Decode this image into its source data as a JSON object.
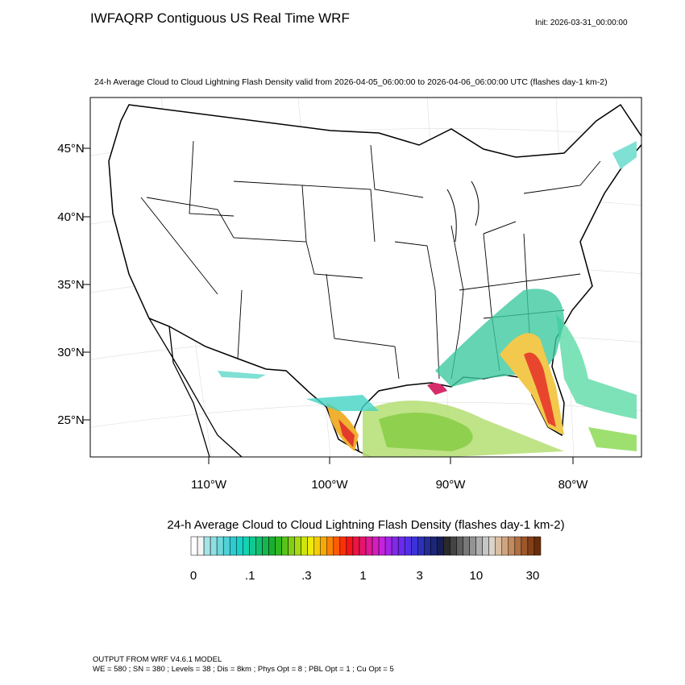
{
  "header": {
    "title": "IWFAQRP Contiguous US Real Time WRF",
    "init": "Init: 2026-03-31_00:00:00"
  },
  "map": {
    "subtitle": "24-h Average Cloud to Cloud Lightning Flash Density valid from 2026-04-05_06:00:00 to 2026-04-06_06:00:00 UTC   (flashes day-1 km-2)",
    "lat_labels": [
      "45°N",
      "40°N",
      "35°N",
      "30°N",
      "25°N"
    ],
    "lon_labels": [
      "110°W",
      "100°W",
      "90°W",
      "80°W"
    ]
  },
  "colorbar": {
    "title": "24-h Average Cloud to Cloud Lightning Flash Density  (flashes day-1 km-2)",
    "labels": [
      "0",
      ".1",
      ".3",
      "1",
      "3",
      "10",
      "30"
    ]
  },
  "footer": {
    "lines": [
      "OUTPUT FROM WRF V4.6.1 MODEL",
      "WE = 580 ; SN = 380 ; Levels = 38 ; Dis = 8km ; Phys Opt = 8 ; PBL Opt = 1 ; Cu Opt = 5"
    ]
  }
}
